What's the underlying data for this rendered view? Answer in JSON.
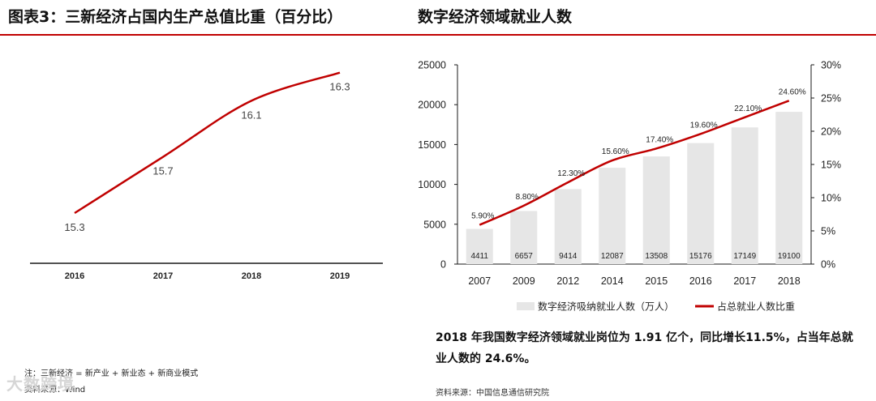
{
  "left_panel": {
    "heading": "图表3：三新经济占国内生产总值比重（百分比）",
    "note": "注：三新经济 = 新产业 + 新业态 + 新商业模式",
    "source": "资料来源：Wind"
  },
  "right_panel": {
    "heading": "数字经济领域就业人数",
    "summary_line1": "2018 年我国数字经济领域就业岗位为 1.91 亿个，同比增长11.5%，占当年总就",
    "summary_line2": "业人数的 24.6%。",
    "source": "资料来源：中国信息通信研究院"
  },
  "watermark": "大数跨境",
  "chart_data": [
    {
      "type": "line",
      "categories": [
        "2016",
        "2017",
        "2018",
        "2019"
      ],
      "series": [
        {
          "values": [
            15.3,
            15.7,
            16.1,
            16.3
          ],
          "labels": [
            "15.3",
            "15.7",
            "16.1",
            "16.3"
          ],
          "color": "#c00000"
        }
      ],
      "ylim": [
        15.0,
        16.5
      ],
      "grid": false,
      "legend": "none"
    },
    {
      "type": "bar",
      "categories": [
        "2007",
        "2009",
        "2012",
        "2014",
        "2015",
        "2016",
        "2017",
        "2018"
      ],
      "series": [
        {
          "name": "数字经济吸纳就业人数（万人）",
          "type": "bar",
          "axis": "left",
          "color": "#e6e6e6",
          "values": [
            4411,
            6657,
            9414,
            12087,
            13508,
            15176,
            17149,
            19100
          ],
          "labels": [
            "4411",
            "6657",
            "9414",
            "12087",
            "13508",
            "15176",
            "17149",
            "19100"
          ]
        },
        {
          "name": "占总就业人数比重",
          "type": "line",
          "axis": "right",
          "color": "#c00000",
          "values": [
            5.9,
            8.8,
            12.3,
            15.6,
            17.4,
            19.6,
            22.1,
            24.6
          ],
          "labels": [
            "5.90%",
            "8.80%",
            "12.30%",
            "15.60%",
            "17.40%",
            "19.60%",
            "22.10%",
            "24.60%"
          ]
        }
      ],
      "y_left": {
        "min": 0,
        "max": 25000,
        "ticks": [
          "0",
          "5000",
          "10000",
          "15000",
          "20000",
          "25000"
        ]
      },
      "y_right": {
        "min": 0,
        "max": 30,
        "ticks": [
          "0%",
          "5%",
          "10%",
          "15%",
          "20%",
          "25%",
          "30%"
        ]
      },
      "grid": false,
      "legend": "bottom"
    }
  ]
}
